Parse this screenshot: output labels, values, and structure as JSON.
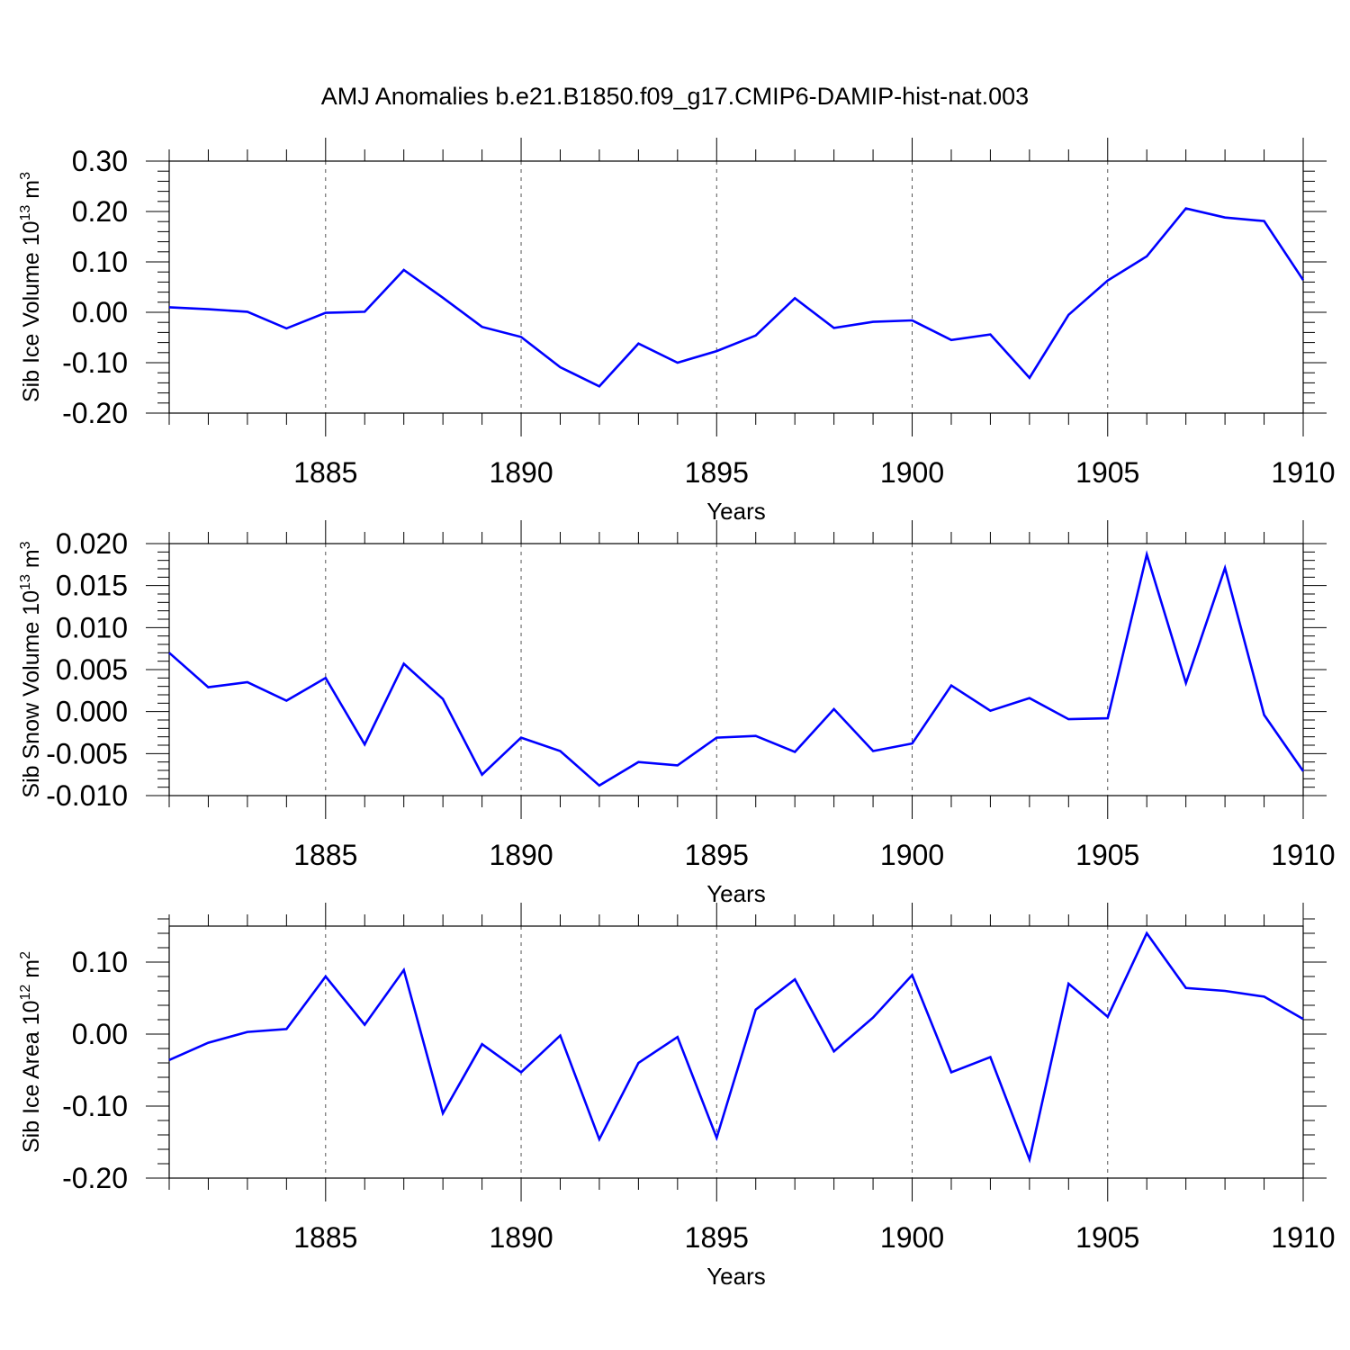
{
  "title": "AMJ Anomalies b.e21.B1850.f09_g17.CMIP6-DAMIP-hist-nat.003",
  "chart_data": [
    {
      "type": "line",
      "ylabel": {
        "main": "Sib Ice Volume 10",
        "exp": "13",
        "unit": " m",
        "unit_exp": "3"
      },
      "xlabel": "Years",
      "xlim": [
        1881,
        1910
      ],
      "ylim": [
        -0.2,
        0.3
      ],
      "yticks": [
        -0.2,
        -0.1,
        0.0,
        0.1,
        0.2,
        0.3
      ],
      "ytick_labels": [
        "-0.20",
        "-0.10",
        "0.00",
        "0.10",
        "0.20",
        "0.30"
      ],
      "xticks": [
        1885,
        1890,
        1895,
        1900,
        1905,
        1910
      ],
      "xtick_labels": [
        "1885",
        "1890",
        "1895",
        "1900",
        "1905",
        "1910"
      ],
      "color": "#0000ff",
      "x": [
        1881,
        1882,
        1883,
        1884,
        1885,
        1886,
        1887,
        1888,
        1889,
        1890,
        1891,
        1892,
        1893,
        1894,
        1895,
        1896,
        1897,
        1898,
        1899,
        1900,
        1901,
        1902,
        1903,
        1904,
        1905,
        1906,
        1907,
        1908,
        1909,
        1910
      ],
      "values": [
        0.01,
        0.006,
        0.001,
        -0.032,
        -0.001,
        0.001,
        0.084,
        0.029,
        -0.029,
        -0.049,
        -0.109,
        -0.147,
        -0.062,
        -0.1,
        -0.077,
        -0.046,
        0.028,
        -0.031,
        -0.019,
        -0.016,
        -0.055,
        -0.044,
        -0.13,
        -0.005,
        0.063,
        0.111,
        0.206,
        0.188,
        0.181,
        0.064
      ]
    },
    {
      "type": "line",
      "ylabel": {
        "main": "Sib Snow Volume 10",
        "exp": "13",
        "unit": " m",
        "unit_exp": "3"
      },
      "xlabel": "Years",
      "xlim": [
        1881,
        1910
      ],
      "ylim": [
        -0.01,
        0.02
      ],
      "yticks": [
        -0.01,
        -0.005,
        0.0,
        0.005,
        0.01,
        0.015,
        0.02
      ],
      "ytick_labels": [
        "-0.010",
        "-0.005",
        "0.000",
        "0.005",
        "0.010",
        "0.015",
        "0.020"
      ],
      "xticks": [
        1885,
        1890,
        1895,
        1900,
        1905,
        1910
      ],
      "xtick_labels": [
        "1885",
        "1890",
        "1895",
        "1900",
        "1905",
        "1910"
      ],
      "color": "#0000ff",
      "x": [
        1881,
        1882,
        1883,
        1884,
        1885,
        1886,
        1887,
        1888,
        1889,
        1890,
        1891,
        1892,
        1893,
        1894,
        1895,
        1896,
        1897,
        1898,
        1899,
        1900,
        1901,
        1902,
        1903,
        1904,
        1905,
        1906,
        1907,
        1908,
        1909,
        1910
      ],
      "values": [
        0.007,
        0.0029,
        0.0035,
        0.0013,
        0.004,
        -0.0039,
        0.0057,
        0.0015,
        -0.0075,
        -0.0031,
        -0.0047,
        -0.0088,
        -0.006,
        -0.0064,
        -0.0031,
        -0.0029,
        -0.0048,
        0.0003,
        -0.0047,
        -0.0038,
        0.0031,
        0.0001,
        0.0016,
        -0.0009,
        -0.0008,
        0.0187,
        0.0034,
        0.0171,
        -0.0004,
        -0.0071
      ]
    },
    {
      "type": "line",
      "ylabel": {
        "main": "Sib Ice Area 10",
        "exp": "12",
        "unit": " m",
        "unit_exp": "2"
      },
      "xlabel": "Years",
      "xlim": [
        1881,
        1910
      ],
      "ylim": [
        -0.2,
        0.15
      ],
      "yticks": [
        -0.2,
        -0.1,
        0.0,
        0.1
      ],
      "ytick_labels": [
        "-0.20",
        "-0.10",
        "0.00",
        "0.10"
      ],
      "xticks": [
        1885,
        1890,
        1895,
        1900,
        1905,
        1910
      ],
      "xtick_labels": [
        "1885",
        "1890",
        "1895",
        "1900",
        "1905",
        "1910"
      ],
      "color": "#0000ff",
      "x": [
        1881,
        1882,
        1883,
        1884,
        1885,
        1886,
        1887,
        1888,
        1889,
        1890,
        1891,
        1892,
        1893,
        1894,
        1895,
        1896,
        1897,
        1898,
        1899,
        1900,
        1901,
        1902,
        1903,
        1904,
        1905,
        1906,
        1907,
        1908,
        1909,
        1910
      ],
      "values": [
        -0.036,
        -0.012,
        0.003,
        0.007,
        0.08,
        0.013,
        0.089,
        -0.11,
        -0.014,
        -0.053,
        -0.002,
        -0.146,
        -0.04,
        -0.004,
        -0.144,
        0.034,
        0.076,
        -0.024,
        0.023,
        0.082,
        -0.053,
        -0.032,
        -0.174,
        0.07,
        0.024,
        0.14,
        0.064,
        0.06,
        0.052,
        0.021
      ]
    }
  ]
}
